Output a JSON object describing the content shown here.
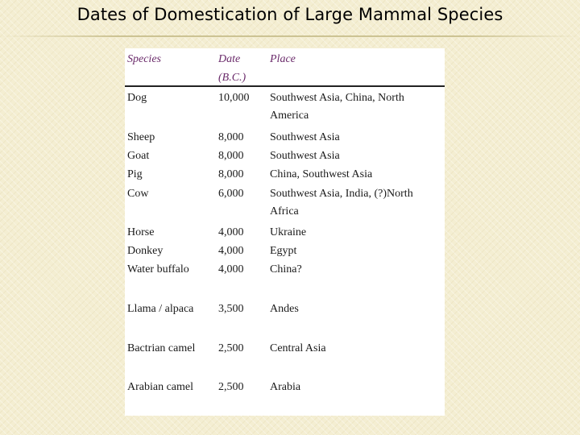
{
  "title": "Dates of Domestication of Large Mammal Species",
  "headers": {
    "species": "Species",
    "date_line1": "Date",
    "date_line2": "(B.C.)",
    "place": "Place"
  },
  "rows": [
    {
      "species": "Dog",
      "date": "10,000",
      "place_line1": "Southwest Asia, China, North",
      "place_line2": "America"
    },
    {
      "species": "Sheep",
      "date": "8,000",
      "place_line1": "Southwest Asia"
    },
    {
      "species": "Goat",
      "date": "8,000",
      "place_line1": "Southwest Asia"
    },
    {
      "species": "Pig",
      "date": "8,000",
      "place_line1": "China, Southwest Asia"
    },
    {
      "species": "Cow",
      "date": "6,000",
      "place_line1": "Southwest Asia, India, (?)North",
      "place_line2": "Africa"
    },
    {
      "species": "Horse",
      "date": "4,000",
      "place_line1": "Ukraine"
    },
    {
      "species": "Donkey",
      "date": "4,000",
      "place_line1": "Egypt"
    },
    {
      "species": "Water buffalo",
      "date": "4,000",
      "place_line1": "China?"
    },
    {
      "species": "Llama / alpaca",
      "date": "3,500",
      "place_line1": "Andes"
    },
    {
      "species": "Bactrian camel",
      "date": "2,500",
      "place_line1": "Central Asia"
    },
    {
      "species": "Arabian camel",
      "date": "2,500",
      "place_line1": "Arabia"
    }
  ]
}
